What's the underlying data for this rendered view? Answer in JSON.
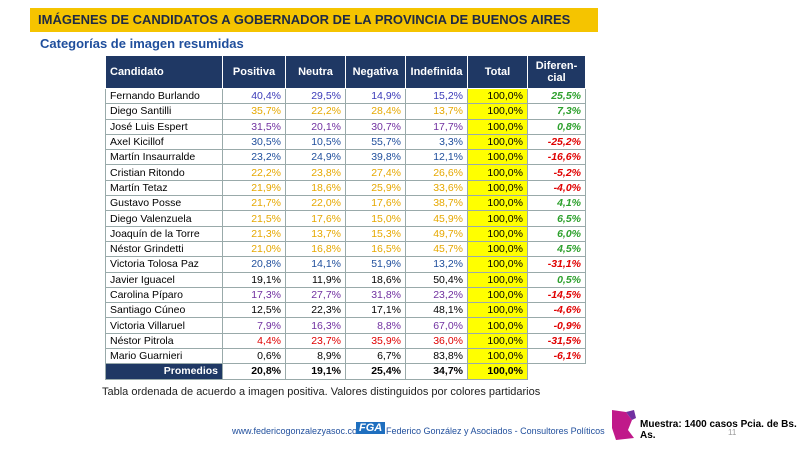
{
  "header": {
    "title": "IMÁGENES DE CANDIDATOS A GOBERNADOR DE LA PROVINCIA DE BUENOS AIRES",
    "subtitle": "Categorías de imagen resumidas"
  },
  "table": {
    "columns": [
      "Candidato",
      "Positiva",
      "Neutra",
      "Negativa",
      "Indefinida",
      "Total",
      "Diferen-cial"
    ],
    "rows": [
      {
        "cells": [
          "Fernando Burlando",
          "40,4%",
          "29,5%",
          "14,9%",
          "15,2%",
          "100,0%",
          "25,5%"
        ],
        "color": "#3a3ab8"
      },
      {
        "cells": [
          "Diego Santilli",
          "35,7%",
          "22,2%",
          "28,4%",
          "13,7%",
          "100,0%",
          "7,3%"
        ],
        "color": "#e6a800"
      },
      {
        "cells": [
          "José Luis Espert",
          "31,5%",
          "20,1%",
          "30,7%",
          "17,7%",
          "100,0%",
          "0,8%"
        ],
        "color": "#7030a0"
      },
      {
        "cells": [
          "Axel Kicillof",
          "30,5%",
          "10,5%",
          "55,7%",
          "3,3%",
          "100,0%",
          "-25,2%"
        ],
        "color": "#1f4e9c"
      },
      {
        "cells": [
          "Martín Insaurralde",
          "23,2%",
          "24,9%",
          "39,8%",
          "12,1%",
          "100,0%",
          "-16,6%"
        ],
        "color": "#1f4e9c"
      },
      {
        "cells": [
          "Cristian Ritondo",
          "22,2%",
          "23,8%",
          "27,4%",
          "26,6%",
          "100,0%",
          "-5,2%"
        ],
        "color": "#e6a800"
      },
      {
        "cells": [
          "Martín Tetaz",
          "21,9%",
          "18,6%",
          "25,9%",
          "33,6%",
          "100,0%",
          "-4,0%"
        ],
        "color": "#e6a800"
      },
      {
        "cells": [
          "Gustavo Posse",
          "21,7%",
          "22,0%",
          "17,6%",
          "38,7%",
          "100,0%",
          "4,1%"
        ],
        "color": "#e6a800"
      },
      {
        "cells": [
          "Diego Valenzuela",
          "21,5%",
          "17,6%",
          "15,0%",
          "45,9%",
          "100,0%",
          "6,5%"
        ],
        "color": "#e6a800"
      },
      {
        "cells": [
          "Joaquín de la Torre",
          "21,3%",
          "13,7%",
          "15,3%",
          "49,7%",
          "100,0%",
          "6,0%"
        ],
        "color": "#e6a800"
      },
      {
        "cells": [
          "Néstor Grindetti",
          "21,0%",
          "16,8%",
          "16,5%",
          "45,7%",
          "100,0%",
          "4,5%"
        ],
        "color": "#e6a800"
      },
      {
        "cells": [
          "Victoria Tolosa Paz",
          "20,8%",
          "14,1%",
          "51,9%",
          "13,2%",
          "100,0%",
          "-31,1%"
        ],
        "color": "#1f4e9c"
      },
      {
        "cells": [
          "Javier Iguacel",
          "19,1%",
          "11,9%",
          "18,6%",
          "50,4%",
          "100,0%",
          "0,5%"
        ],
        "color": "#000000"
      },
      {
        "cells": [
          "Carolina Píparo",
          "17,3%",
          "27,7%",
          "31,8%",
          "23,2%",
          "100,0%",
          "-14,5%"
        ],
        "color": "#7030a0"
      },
      {
        "cells": [
          "Santiago Cúneo",
          "12,5%",
          "22,3%",
          "17,1%",
          "48,1%",
          "100,0%",
          "-4,6%"
        ],
        "color": "#000000"
      },
      {
        "cells": [
          "Victoria Villaruel",
          "7,9%",
          "16,3%",
          "8,8%",
          "67,0%",
          "100,0%",
          "-0,9%"
        ],
        "color": "#7030a0"
      },
      {
        "cells": [
          "Néstor Pitrola",
          "4,4%",
          "23,7%",
          "35,9%",
          "36,0%",
          "100,0%",
          "-31,5%"
        ],
        "color": "#e00000"
      },
      {
        "cells": [
          "Mario Guarnieri",
          "0,6%",
          "8,9%",
          "6,7%",
          "83,8%",
          "100,0%",
          "-6,1%"
        ],
        "color": "#000000"
      }
    ],
    "footer_row": [
      "Promedios",
      "20,8%",
      "19,1%",
      "25,4%",
      "34,7%",
      "100,0%"
    ]
  },
  "note": "Tabla ordenada de acuerdo a imagen positiva. Valores distinguidos por colores partidarios",
  "footer": {
    "url": "www.federicogonzalezyasoc.com",
    "logo": "FGA",
    "company": "Federico González y Asociados - Consultores Políticos",
    "sample": "Muestra: 1400 casos Pcia. de Bs. As.",
    "page": "11"
  }
}
